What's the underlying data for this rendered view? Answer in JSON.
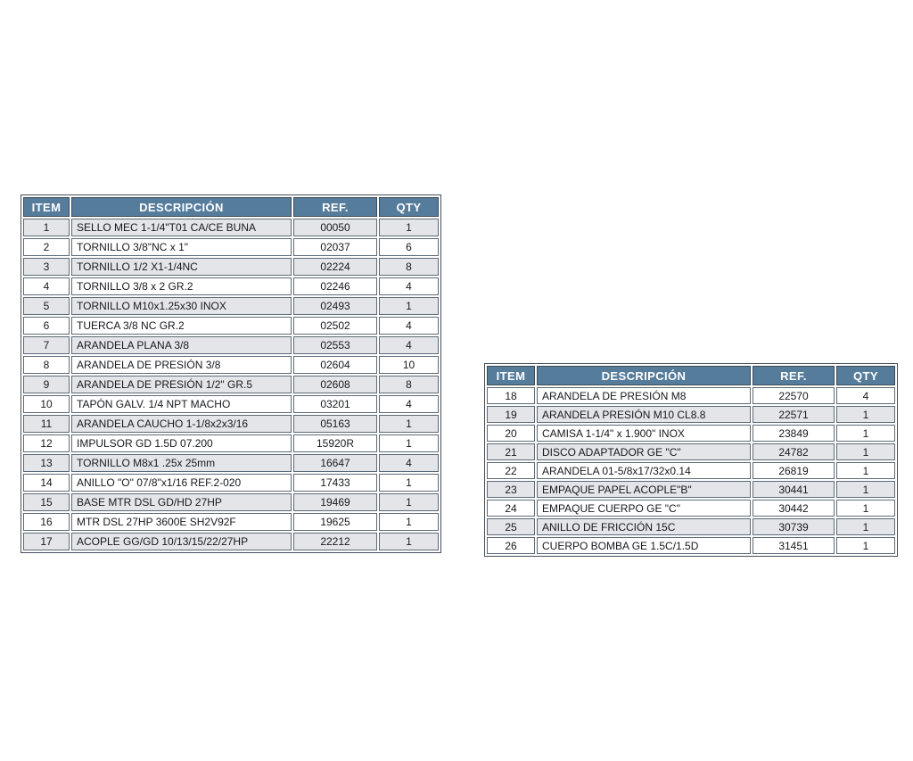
{
  "colors": {
    "header_bg": "#567c9c",
    "header_text": "#ffffff",
    "row_shaded_bg": "#e4e5e9",
    "row_plain_bg": "#ffffff",
    "border": "#44505c",
    "cell_text": "#17191d"
  },
  "tables": [
    {
      "name": "parts-list-items-1-17",
      "columns": [
        "ITEM",
        "DESCRIPCIÓN",
        "REF.",
        "QTY"
      ],
      "rows": [
        [
          "1",
          "SELLO MEC 1-1/4\"T01 CA/CE BUNA",
          "00050",
          "1"
        ],
        [
          "2",
          "TORNILLO 3/8\"NC x 1\"",
          "02037",
          "6"
        ],
        [
          "3",
          "TORNILLO 1/2 X1-1/4NC",
          "02224",
          "8"
        ],
        [
          "4",
          "TORNILLO 3/8 x 2 GR.2",
          "02246",
          "4"
        ],
        [
          "5",
          "TORNILLO M10x1.25x30 INOX",
          "02493",
          "1"
        ],
        [
          "6",
          "TUERCA 3/8 NC GR.2",
          "02502",
          "4"
        ],
        [
          "7",
          "ARANDELA PLANA 3/8",
          "02553",
          "4"
        ],
        [
          "8",
          "ARANDELA DE PRESIÓN 3/8",
          "02604",
          "10"
        ],
        [
          "9",
          "ARANDELA DE PRESIÓN 1/2\" GR.5",
          "02608",
          "8"
        ],
        [
          "10",
          "TAPÓN GALV. 1/4 NPT MACHO",
          "03201",
          "4"
        ],
        [
          "11",
          "ARANDELA CAUCHO 1-1/8x2x3/16",
          "05163",
          "1"
        ],
        [
          "12",
          "IMPULSOR GD 1.5D 07.200",
          "15920R",
          "1"
        ],
        [
          "13",
          "TORNILLO M8x1 .25x 25mm",
          "16647",
          "4"
        ],
        [
          "14",
          "ANILLO \"O\" 07/8\"x1/16 REF.2-020",
          "17433",
          "1"
        ],
        [
          "15",
          "BASE MTR DSL GD/HD 27HP",
          "19469",
          "1"
        ],
        [
          "16",
          "MTR DSL 27HP 3600E SH2V92F",
          "19625",
          "1"
        ],
        [
          "17",
          "ACOPLE GG/GD 10/13/15/22/27HP",
          "22212",
          "1"
        ]
      ]
    },
    {
      "name": "parts-list-items-18-26",
      "columns": [
        "ITEM",
        "DESCRIPCIÓN",
        "REF.",
        "QTY"
      ],
      "rows": [
        [
          "18",
          "ARANDELA DE PRESIÓN M8",
          "22570",
          "4"
        ],
        [
          "19",
          "ARANDELA PRESIÓN M10 CL8.8",
          "22571",
          "1"
        ],
        [
          "20",
          "CAMISA 1-1/4\" x 1.900\" INOX",
          "23849",
          "1"
        ],
        [
          "21",
          "DISCO ADAPTADOR GE \"C\"",
          "24782",
          "1"
        ],
        [
          "22",
          "ARANDELA 01-5/8x17/32x0.14",
          "26819",
          "1"
        ],
        [
          "23",
          "EMPAQUE PAPEL ACOPLE\"B\"",
          "30441",
          "1"
        ],
        [
          "24",
          "EMPAQUE CUERPO GE \"C\"",
          "30442",
          "1"
        ],
        [
          "25",
          "ANILLO DE FRICCIÓN 15C",
          "30739",
          "1"
        ],
        [
          "26",
          "CUERPO BOMBA GE 1.5C/1.5D",
          "31451",
          "1"
        ]
      ]
    }
  ]
}
